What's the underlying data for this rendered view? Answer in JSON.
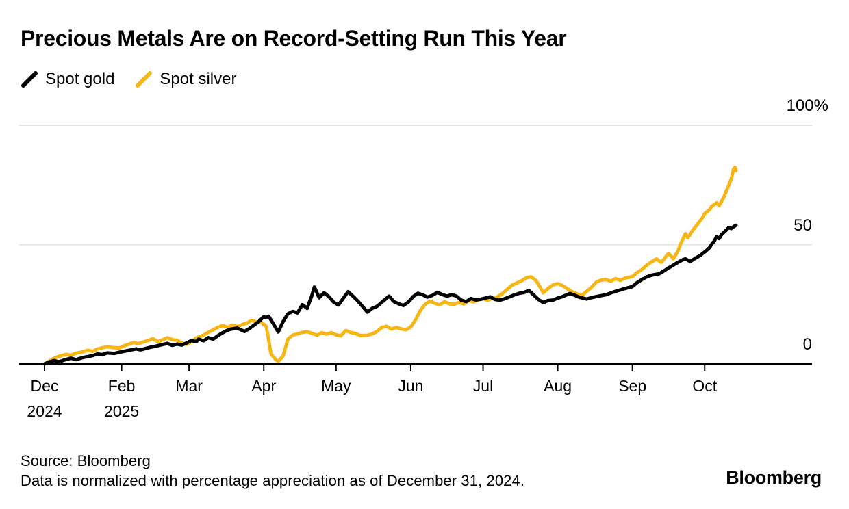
{
  "title": "Precious Metals Are on Record-Setting Run This Year",
  "legend": [
    {
      "label": "Spot gold",
      "color": "#000000"
    },
    {
      "label": "Spot silver",
      "color": "#F6B616"
    }
  ],
  "footer": {
    "source": "Source: Bloomberg",
    "note": "Data is normalized with percentage appreciation as of December 31, 2024.",
    "brand": "Bloomberg"
  },
  "chart_data": {
    "type": "line",
    "title": "Precious Metals Are on Record-Setting Run This Year",
    "x_unit": "days since 2024-12-31",
    "x_range_days": [
      0,
      287
    ],
    "ylim": [
      0,
      100
    ],
    "y_unit": "% appreciation since Dec 31, 2024",
    "grid": "horizontal",
    "legend_position": "top-left",
    "yticks": [
      {
        "label": "0",
        "value": 0
      },
      {
        "label": "50",
        "value": 50
      },
      {
        "label": "100%",
        "value": 100
      }
    ],
    "xticks": [
      {
        "label": "Dec",
        "sublabel": "2024",
        "day": 0
      },
      {
        "label": "Feb",
        "sublabel": "2025",
        "day": 32
      },
      {
        "label": "Mar",
        "day": 60
      },
      {
        "label": "Apr",
        "day": 91
      },
      {
        "label": "May",
        "day": 121
      },
      {
        "label": "Jun",
        "day": 152
      },
      {
        "label": "Jul",
        "day": 182
      },
      {
        "label": "Aug",
        "day": 213
      },
      {
        "label": "Sep",
        "day": 244
      },
      {
        "label": "Oct",
        "day": 274
      }
    ],
    "series": [
      {
        "name": "Spot gold",
        "color": "#000000",
        "points": [
          [
            0,
            0
          ],
          [
            2,
            0.8
          ],
          [
            4,
            1.4
          ],
          [
            6,
            0.9
          ],
          [
            9,
            1.9
          ],
          [
            11,
            2.4
          ],
          [
            13,
            1.8
          ],
          [
            16,
            2.7
          ],
          [
            18,
            3.1
          ],
          [
            20,
            3.5
          ],
          [
            22,
            4.2
          ],
          [
            24,
            3.9
          ],
          [
            26,
            4.6
          ],
          [
            29,
            4.4
          ],
          [
            31,
            4.9
          ],
          [
            33,
            5.3
          ],
          [
            35,
            5.7
          ],
          [
            38,
            6.3
          ],
          [
            40,
            5.9
          ],
          [
            42,
            6.5
          ],
          [
            44,
            7.0
          ],
          [
            46,
            7.4
          ],
          [
            48,
            7.9
          ],
          [
            51,
            8.6
          ],
          [
            53,
            7.8
          ],
          [
            55,
            8.3
          ],
          [
            57,
            7.9
          ],
          [
            59,
            8.8
          ],
          [
            61,
            9.8
          ],
          [
            63,
            9.3
          ],
          [
            64,
            10.4
          ],
          [
            66,
            9.7
          ],
          [
            68,
            11.0
          ],
          [
            70,
            10.4
          ],
          [
            72,
            11.9
          ],
          [
            75,
            13.7
          ],
          [
            77,
            14.5
          ],
          [
            80,
            15.0
          ],
          [
            83,
            13.6
          ],
          [
            85,
            14.8
          ],
          [
            87,
            16.3
          ],
          [
            89,
            17.8
          ],
          [
            91,
            19.8
          ],
          [
            92,
            19.4
          ],
          [
            93,
            20.0
          ],
          [
            95,
            16.8
          ],
          [
            97,
            13.4
          ],
          [
            99,
            17.7
          ],
          [
            101,
            21.0
          ],
          [
            103,
            22.0
          ],
          [
            105,
            21.4
          ],
          [
            107,
            24.8
          ],
          [
            109,
            23.3
          ],
          [
            111,
            28.7
          ],
          [
            112,
            32.2
          ],
          [
            113,
            30.0
          ],
          [
            114,
            27.7
          ],
          [
            116,
            29.8
          ],
          [
            118,
            28.2
          ],
          [
            120,
            25.9
          ],
          [
            122,
            24.7
          ],
          [
            124,
            27.5
          ],
          [
            126,
            30.3
          ],
          [
            128,
            28.4
          ],
          [
            130,
            26.4
          ],
          [
            132,
            24.1
          ],
          [
            134,
            21.7
          ],
          [
            136,
            23.3
          ],
          [
            138,
            24.1
          ],
          [
            141,
            26.7
          ],
          [
            143,
            28.4
          ],
          [
            145,
            26.1
          ],
          [
            147,
            25.2
          ],
          [
            149,
            24.5
          ],
          [
            151,
            25.9
          ],
          [
            153,
            28.2
          ],
          [
            155,
            29.6
          ],
          [
            157,
            28.9
          ],
          [
            159,
            28.0
          ],
          [
            161,
            28.7
          ],
          [
            163,
            30.0
          ],
          [
            165,
            29.1
          ],
          [
            167,
            28.4
          ],
          [
            169,
            29.0
          ],
          [
            171,
            28.4
          ],
          [
            173,
            26.7
          ],
          [
            175,
            26.1
          ],
          [
            177,
            27.4
          ],
          [
            179,
            26.8
          ],
          [
            181,
            27.1
          ],
          [
            183,
            27.6
          ],
          [
            185,
            28.1
          ],
          [
            187,
            27.0
          ],
          [
            189,
            26.7
          ],
          [
            191,
            27.3
          ],
          [
            193,
            28.1
          ],
          [
            195,
            28.9
          ],
          [
            197,
            29.6
          ],
          [
            199,
            29.9
          ],
          [
            201,
            30.8
          ],
          [
            203,
            28.9
          ],
          [
            205,
            27.0
          ],
          [
            207,
            25.7
          ],
          [
            209,
            26.6
          ],
          [
            211,
            26.7
          ],
          [
            213,
            27.6
          ],
          [
            215,
            28.2
          ],
          [
            218,
            29.5
          ],
          [
            220,
            28.8
          ],
          [
            222,
            27.9
          ],
          [
            225,
            27.2
          ],
          [
            227,
            27.8
          ],
          [
            229,
            28.2
          ],
          [
            231,
            28.6
          ],
          [
            233,
            29.0
          ],
          [
            235,
            29.7
          ],
          [
            237,
            30.4
          ],
          [
            239,
            31.0
          ],
          [
            241,
            31.6
          ],
          [
            244,
            32.4
          ],
          [
            246,
            34.1
          ],
          [
            248,
            35.4
          ],
          [
            250,
            36.5
          ],
          [
            252,
            37.2
          ],
          [
            255,
            37.7
          ],
          [
            257,
            38.9
          ],
          [
            259,
            40.2
          ],
          [
            261,
            41.4
          ],
          [
            263,
            42.6
          ],
          [
            265,
            43.7
          ],
          [
            266,
            44.0
          ],
          [
            268,
            42.9
          ],
          [
            270,
            44.2
          ],
          [
            272,
            45.4
          ],
          [
            274,
            46.9
          ],
          [
            276,
            48.7
          ],
          [
            277,
            50.3
          ],
          [
            278,
            51.5
          ],
          [
            279,
            53.4
          ],
          [
            280,
            52.5
          ],
          [
            281,
            54.2
          ],
          [
            283,
            56.1
          ],
          [
            284,
            57.2
          ],
          [
            285,
            56.7
          ],
          [
            286,
            57.5
          ],
          [
            287,
            58.1
          ]
        ]
      },
      {
        "name": "Spot silver",
        "color": "#F6B616",
        "points": [
          [
            0,
            0
          ],
          [
            2,
            1.2
          ],
          [
            4,
            2.4
          ],
          [
            6,
            3.2
          ],
          [
            9,
            4.0
          ],
          [
            11,
            3.6
          ],
          [
            13,
            4.5
          ],
          [
            16,
            5.1
          ],
          [
            18,
            5.7
          ],
          [
            20,
            5.3
          ],
          [
            22,
            6.3
          ],
          [
            24,
            6.8
          ],
          [
            26,
            7.2
          ],
          [
            28,
            6.9
          ],
          [
            31,
            6.7
          ],
          [
            33,
            7.6
          ],
          [
            35,
            8.3
          ],
          [
            37,
            9.0
          ],
          [
            39,
            8.5
          ],
          [
            41,
            9.2
          ],
          [
            43,
            9.8
          ],
          [
            45,
            10.6
          ],
          [
            47,
            9.3
          ],
          [
            49,
            10.1
          ],
          [
            51,
            11.0
          ],
          [
            53,
            10.2
          ],
          [
            55,
            9.9
          ],
          [
            57,
            8.8
          ],
          [
            59,
            8.2
          ],
          [
            61,
            9.3
          ],
          [
            63,
            10.9
          ],
          [
            66,
            12.1
          ],
          [
            68,
            13.3
          ],
          [
            70,
            14.3
          ],
          [
            72,
            15.4
          ],
          [
            74,
            16.1
          ],
          [
            76,
            15.3
          ],
          [
            78,
            16.3
          ],
          [
            80,
            15.6
          ],
          [
            82,
            16.5
          ],
          [
            84,
            17.1
          ],
          [
            86,
            18.3
          ],
          [
            88,
            17.6
          ],
          [
            90,
            17.3
          ],
          [
            92,
            15.8
          ],
          [
            94,
            4.2
          ],
          [
            96,
            1.8
          ],
          [
            97,
            1.1
          ],
          [
            99,
            3.3
          ],
          [
            101,
            10.4
          ],
          [
            103,
            12.1
          ],
          [
            105,
            12.6
          ],
          [
            107,
            13.2
          ],
          [
            109,
            13.5
          ],
          [
            111,
            12.9
          ],
          [
            113,
            12.0
          ],
          [
            115,
            13.1
          ],
          [
            117,
            12.5
          ],
          [
            119,
            13.1
          ],
          [
            121,
            12.2
          ],
          [
            123,
            11.8
          ],
          [
            125,
            14.0
          ],
          [
            127,
            13.2
          ],
          [
            129,
            12.8
          ],
          [
            131,
            11.9
          ],
          [
            134,
            12.0
          ],
          [
            136,
            12.6
          ],
          [
            138,
            13.6
          ],
          [
            140,
            15.3
          ],
          [
            142,
            15.8
          ],
          [
            144,
            14.6
          ],
          [
            146,
            15.3
          ],
          [
            148,
            14.7
          ],
          [
            150,
            14.3
          ],
          [
            152,
            15.5
          ],
          [
            154,
            18.5
          ],
          [
            156,
            22.5
          ],
          [
            158,
            25.0
          ],
          [
            160,
            26.3
          ],
          [
            162,
            25.4
          ],
          [
            164,
            24.7
          ],
          [
            166,
            26.1
          ],
          [
            168,
            25.2
          ],
          [
            170,
            25.0
          ],
          [
            172,
            25.8
          ],
          [
            174,
            25.1
          ],
          [
            176,
            26.5
          ],
          [
            178,
            26.0
          ],
          [
            180,
            26.8
          ],
          [
            182,
            27.3
          ],
          [
            184,
            26.7
          ],
          [
            186,
            27.5
          ],
          [
            188,
            28.1
          ],
          [
            190,
            29.4
          ],
          [
            192,
            31.2
          ],
          [
            194,
            33.0
          ],
          [
            196,
            33.9
          ],
          [
            198,
            34.8
          ],
          [
            200,
            36.1
          ],
          [
            202,
            36.5
          ],
          [
            204,
            34.9
          ],
          [
            206,
            31.7
          ],
          [
            207,
            29.8
          ],
          [
            209,
            31.6
          ],
          [
            211,
            33.1
          ],
          [
            213,
            33.6
          ],
          [
            215,
            32.8
          ],
          [
            217,
            31.5
          ],
          [
            219,
            30.2
          ],
          [
            221,
            29.4
          ],
          [
            223,
            28.7
          ],
          [
            225,
            30.4
          ],
          [
            227,
            32.1
          ],
          [
            229,
            34.3
          ],
          [
            231,
            35.1
          ],
          [
            233,
            35.4
          ],
          [
            235,
            34.6
          ],
          [
            237,
            35.8
          ],
          [
            239,
            35.0
          ],
          [
            241,
            36.0
          ],
          [
            244,
            36.6
          ],
          [
            246,
            38.3
          ],
          [
            248,
            39.6
          ],
          [
            250,
            41.4
          ],
          [
            252,
            42.8
          ],
          [
            254,
            44.0
          ],
          [
            256,
            42.5
          ],
          [
            258,
            45.1
          ],
          [
            259,
            46.3
          ],
          [
            261,
            44.0
          ],
          [
            263,
            47.5
          ],
          [
            264,
            50.3
          ],
          [
            266,
            54.6
          ],
          [
            267,
            52.8
          ],
          [
            269,
            56.0
          ],
          [
            271,
            58.5
          ],
          [
            273,
            61.2
          ],
          [
            274,
            63.0
          ],
          [
            276,
            64.6
          ],
          [
            277,
            66.1
          ],
          [
            278,
            66.8
          ],
          [
            279,
            67.5
          ],
          [
            280,
            66.3
          ],
          [
            281,
            68.1
          ],
          [
            282,
            70.0
          ],
          [
            283,
            72.6
          ],
          [
            284,
            74.8
          ],
          [
            285,
            77.5
          ],
          [
            286,
            81.7
          ],
          [
            286.6,
            82.4
          ],
          [
            287,
            81.0
          ]
        ]
      }
    ]
  }
}
